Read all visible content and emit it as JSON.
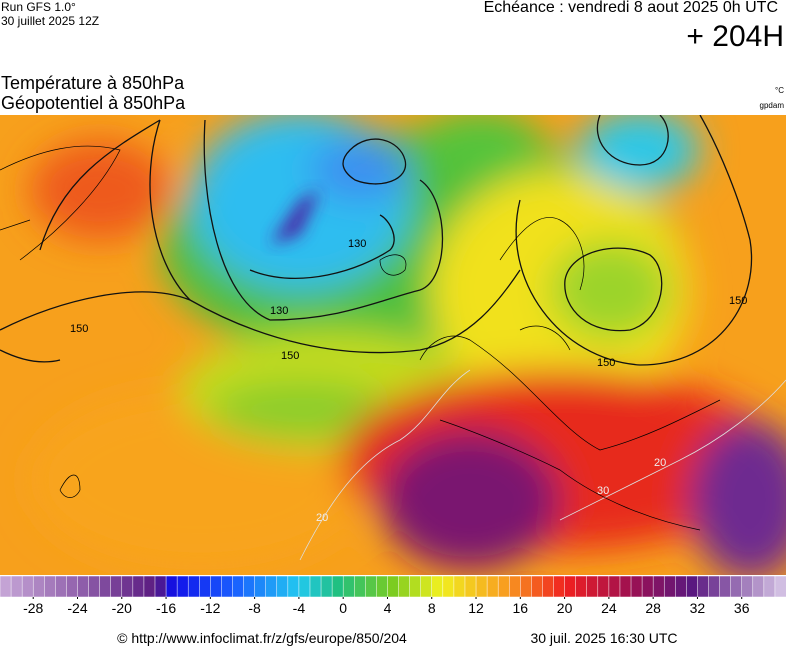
{
  "header": {
    "run": "Run GFS 1.0°",
    "run_date": "30 juillet 2025 12Z",
    "valid": "Echéance : vendredi 8 aout 2025 0h UTC",
    "lead": "+ 204H"
  },
  "titles": {
    "field1": "Température à 850hPa",
    "field2": "Géopotentiel à 850hPa",
    "unit1": "°C",
    "unit2": "gpdam"
  },
  "map": {
    "contour_labels": [
      "150",
      "130",
      "130",
      "150",
      "150",
      "150",
      "20",
      "30",
      "20"
    ]
  },
  "colorbar": {
    "lim": [
      -31,
      40
    ],
    "ticks": [
      -28,
      -24,
      -20,
      -16,
      -12,
      -8,
      -4,
      0,
      4,
      8,
      12,
      16,
      20,
      24,
      28,
      32,
      36
    ]
  },
  "footer": {
    "url": "© http://www.infoclimat.fr/z/gfs/europe/850/204",
    "timestamp": "30 juil. 2025 16:30 UTC"
  }
}
